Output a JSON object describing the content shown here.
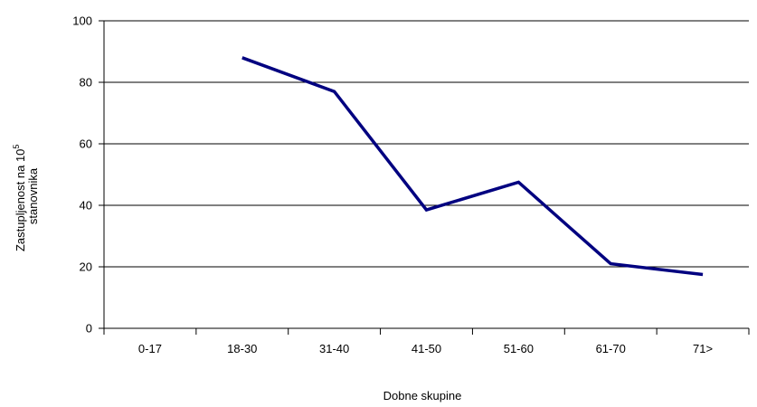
{
  "chart_data": {
    "type": "line",
    "title": "",
    "xlabel": "Dobne skupine",
    "ylabel": {
      "line1_prefix": "Zastupljenost na 10",
      "line1_sup": "5",
      "line2": "stanovnika"
    },
    "categories": [
      "0-17",
      "18-30",
      "31-40",
      "41-50",
      "51-60",
      "61-70",
      "71>"
    ],
    "series": [
      {
        "color": "#000080",
        "values": [
          null,
          88,
          77,
          38.5,
          47.5,
          21,
          17.5
        ]
      }
    ],
    "ylim": [
      0,
      100
    ],
    "yticks": [
      0,
      20,
      40,
      60,
      80,
      100
    ],
    "grid": true,
    "legend": "none"
  }
}
